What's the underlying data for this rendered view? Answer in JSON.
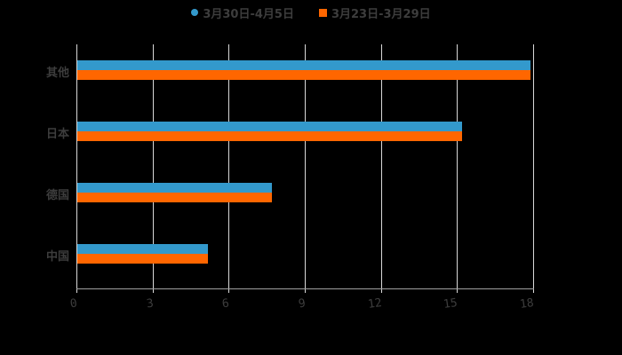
{
  "legend": [
    {
      "label": "3月30日-4月5日",
      "color": "#3399cc",
      "shape": "circle"
    },
    {
      "label": "3月23日-3月29日",
      "color": "#ff6600",
      "shape": "square"
    }
  ],
  "chart_data": {
    "type": "bar",
    "orientation": "horizontal",
    "title": "",
    "categories": [
      "其他",
      "日本",
      "德国",
      "中国"
    ],
    "series": [
      {
        "name": "3月30日-4月5日",
        "color": "#3399cc",
        "values": [
          17.9,
          15.2,
          7.7,
          5.2
        ]
      },
      {
        "name": "3月23日-3月29日",
        "color": "#ff6600",
        "values": [
          17.9,
          15.2,
          7.7,
          5.2
        ]
      }
    ],
    "xlabel": "",
    "ylabel": "",
    "xlim": [
      0,
      18
    ],
    "xticks": [
      "0",
      "3",
      "6",
      "9",
      "12",
      "15",
      "18"
    ],
    "grid": true,
    "legend_position": "top"
  }
}
